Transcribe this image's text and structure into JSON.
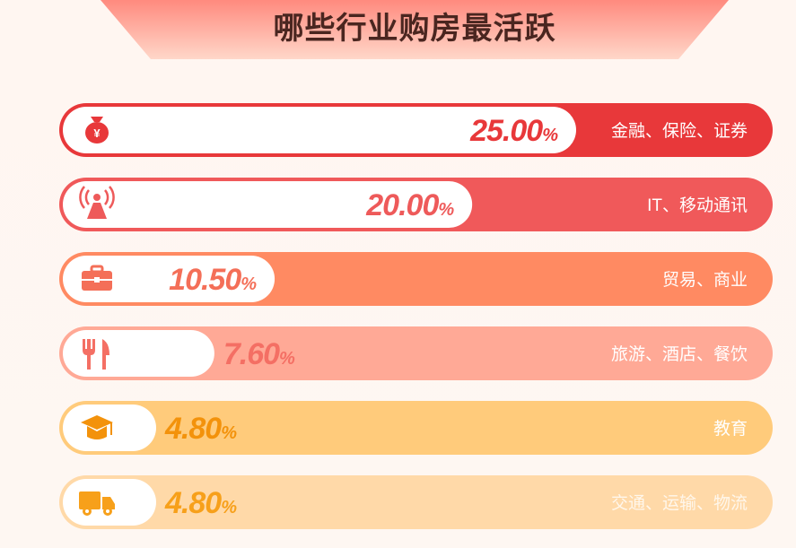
{
  "chart_data": {
    "type": "bar",
    "title": "哪些行业购房最活跃",
    "categories": [
      "金融、保险、证券",
      "IT、移动通讯",
      "贸易、商业",
      "旅游、酒店、餐饮",
      "教育",
      "交通、运输、物流"
    ],
    "values": [
      25.0,
      20.0,
      10.5,
      7.6,
      4.8,
      4.8
    ],
    "value_labels": [
      "25.00",
      "20.00",
      "10.50",
      "7.60",
      "4.80",
      "4.80"
    ],
    "unit": "%",
    "icons": [
      "money-bag-icon",
      "signal-tower-icon",
      "briefcase-icon",
      "fork-knife-icon",
      "graduation-cap-icon",
      "truck-icon"
    ],
    "colors": [
      "#e8383a",
      "#f0595a",
      "#ff8a62",
      "#ffa996",
      "#ffcb7b",
      "#ffd9a8"
    ],
    "text_colors": [
      "#e8383a",
      "#ee5a5a",
      "#f46f58",
      "#f46f64",
      "#f3920b",
      "#f7a01a"
    ],
    "label_colors": [
      "#ffffff",
      "#ffffff",
      "#ffffff",
      "#ffffff",
      "#ffffff",
      "#fff7ec"
    ],
    "xlim": [
      0,
      28
    ]
  }
}
